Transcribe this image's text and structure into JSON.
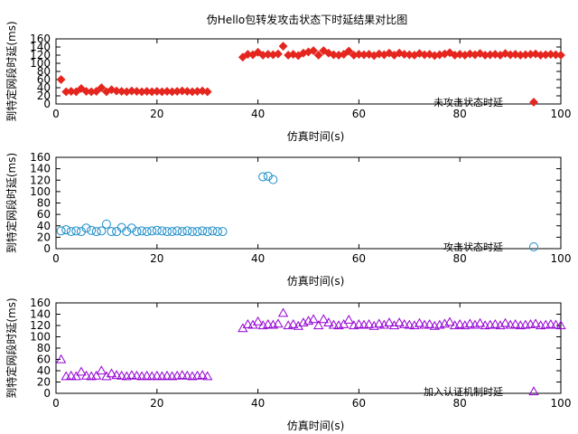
{
  "title": "伪Hello包转发攻击状态下时延结果对比图",
  "colors": {
    "red": "#e5261f",
    "blue": "#1a8cc8",
    "purple": "#9400d3"
  },
  "chart_data": [
    {
      "type": "scatter",
      "xlabel": "仿真时间(s)",
      "ylabel": "到特定网段时延(ms)",
      "xlim": [
        0,
        100
      ],
      "ylim": [
        0,
        160
      ],
      "xticks": [
        0,
        20,
        40,
        60,
        80,
        100
      ],
      "yticks": [
        0,
        20,
        40,
        60,
        80,
        100,
        120,
        140,
        160
      ],
      "grid": false,
      "legend": "bottom-right",
      "series": [
        {
          "name": "未攻击状态时延",
          "marker": "diamond-filled",
          "color": "#e5261f",
          "x": [
            1,
            2,
            3,
            4,
            5,
            6,
            7,
            8,
            9,
            10,
            11,
            12,
            13,
            14,
            15,
            16,
            17,
            18,
            19,
            20,
            21,
            22,
            23,
            24,
            25,
            26,
            27,
            28,
            29,
            30,
            37,
            38,
            39,
            40,
            41,
            42,
            43,
            44,
            45,
            46,
            47,
            48,
            49,
            50,
            51,
            52,
            53,
            54,
            55,
            56,
            57,
            58,
            59,
            60,
            61,
            62,
            63,
            64,
            65,
            66,
            67,
            68,
            69,
            70,
            71,
            72,
            73,
            74,
            75,
            76,
            77,
            78,
            79,
            80,
            81,
            82,
            83,
            84,
            85,
            86,
            87,
            88,
            89,
            90,
            91,
            92,
            93,
            94,
            95,
            96,
            97,
            98,
            99,
            100
          ],
          "y": [
            60,
            30,
            31,
            30,
            38,
            31,
            30,
            31,
            40,
            30,
            35,
            32,
            31,
            30,
            32,
            31,
            30,
            31,
            30,
            31,
            30,
            31,
            30,
            31,
            32,
            31,
            30,
            31,
            32,
            30,
            115,
            122,
            121,
            127,
            120,
            122,
            121,
            123,
            142,
            120,
            122,
            119,
            125,
            128,
            131,
            120,
            131,
            125,
            121,
            120,
            122,
            130,
            120,
            122,
            121,
            122,
            119,
            123,
            121,
            125,
            120,
            125,
            122,
            121,
            120,
            124,
            121,
            122,
            119,
            121,
            123,
            126,
            120,
            122,
            120,
            123,
            121,
            124,
            120,
            121,
            122,
            120,
            124,
            121,
            122,
            120,
            121,
            122,
            123,
            120,
            121,
            122,
            121,
            120
          ]
        }
      ]
    },
    {
      "type": "scatter",
      "xlabel": "仿真时间(s)",
      "ylabel": "到特定网段时延(ms)",
      "xlim": [
        0,
        100
      ],
      "ylim": [
        0,
        160
      ],
      "xticks": [
        0,
        20,
        40,
        60,
        80,
        100
      ],
      "yticks": [
        0,
        20,
        40,
        60,
        80,
        100,
        120,
        140,
        160
      ],
      "grid": false,
      "legend": "bottom-right",
      "series": [
        {
          "name": "攻击状态时延",
          "marker": "circle-open",
          "color": "#1a8cc8",
          "x": [
            1,
            2,
            3,
            4,
            5,
            6,
            7,
            8,
            9,
            10,
            11,
            12,
            13,
            14,
            15,
            16,
            17,
            18,
            19,
            20,
            21,
            22,
            23,
            24,
            25,
            26,
            27,
            28,
            29,
            30,
            31,
            32,
            33,
            41,
            42,
            43
          ],
          "y": [
            31,
            33,
            30,
            31,
            30,
            36,
            32,
            30,
            31,
            43,
            30,
            30,
            37,
            30,
            36,
            30,
            31,
            30,
            31,
            32,
            31,
            30,
            30,
            31,
            30,
            31,
            30,
            30,
            31,
            30,
            31,
            30,
            30,
            126,
            127,
            121
          ]
        }
      ]
    },
    {
      "type": "scatter",
      "xlabel": "仿真时间(s)",
      "ylabel": "到特定网段时延(ms)",
      "xlim": [
        0,
        100
      ],
      "ylim": [
        0,
        160
      ],
      "xticks": [
        0,
        20,
        40,
        60,
        80,
        100
      ],
      "yticks": [
        0,
        20,
        40,
        60,
        80,
        100,
        120,
        140,
        160
      ],
      "grid": false,
      "legend": "bottom-right",
      "series": [
        {
          "name": "加入认证机制时延",
          "marker": "triangle-open",
          "color": "#9400d3",
          "x": [
            1,
            2,
            3,
            4,
            5,
            6,
            7,
            8,
            9,
            10,
            11,
            12,
            13,
            14,
            15,
            16,
            17,
            18,
            19,
            20,
            21,
            22,
            23,
            24,
            25,
            26,
            27,
            28,
            29,
            30,
            37,
            38,
            39,
            40,
            41,
            42,
            43,
            44,
            45,
            46,
            47,
            48,
            49,
            50,
            51,
            52,
            53,
            54,
            55,
            56,
            57,
            58,
            59,
            60,
            61,
            62,
            63,
            64,
            65,
            66,
            67,
            68,
            69,
            70,
            71,
            72,
            73,
            74,
            75,
            76,
            77,
            78,
            79,
            80,
            81,
            82,
            83,
            84,
            85,
            86,
            87,
            88,
            89,
            90,
            91,
            92,
            93,
            94,
            95,
            96,
            97,
            98,
            99,
            100
          ],
          "y": [
            60,
            30,
            31,
            30,
            38,
            31,
            30,
            31,
            40,
            30,
            35,
            32,
            31,
            30,
            32,
            31,
            30,
            31,
            30,
            31,
            30,
            31,
            30,
            31,
            32,
            31,
            30,
            31,
            32,
            30,
            115,
            122,
            121,
            127,
            120,
            122,
            121,
            123,
            142,
            120,
            122,
            119,
            125,
            128,
            131,
            120,
            131,
            125,
            121,
            120,
            122,
            130,
            120,
            122,
            121,
            122,
            119,
            123,
            121,
            125,
            120,
            125,
            122,
            121,
            120,
            124,
            121,
            122,
            119,
            121,
            123,
            126,
            120,
            122,
            120,
            123,
            121,
            124,
            120,
            121,
            122,
            120,
            124,
            121,
            122,
            120,
            121,
            122,
            123,
            120,
            121,
            122,
            121,
            120
          ]
        }
      ]
    }
  ]
}
